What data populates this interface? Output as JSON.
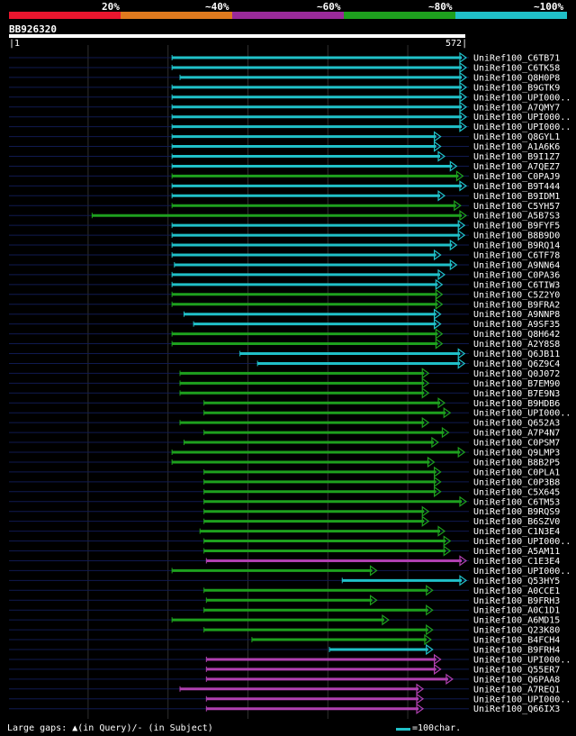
{
  "header": {
    "pct_labels": [
      "20%",
      "~40%",
      "~60%",
      "~80%",
      "~100%"
    ],
    "pct_colors": [
      "#e8162e",
      "#e07a1e",
      "#9a2a9a",
      "#1ea01e",
      "#20c0c8"
    ]
  },
  "query": {
    "name": "BB926320",
    "start": "1",
    "end": "572"
  },
  "footer": {
    "gaps_text": "Large gaps: ▲(in Query)/- (in Subject)",
    "scale_text": "=100char."
  },
  "colors": {
    "cyan": "#20c0c8",
    "green": "#1ea01e",
    "purple": "#b040b0",
    "navy": "#101a50",
    "grid": "#303030"
  },
  "chart_data": {
    "type": "alignment",
    "query_length": 572,
    "hits": [
      {
        "name": "UniRef100_C6TB71",
        "start": 205,
        "end": 572,
        "color": "cyan"
      },
      {
        "name": "UniRef100_C6TK58",
        "start": 205,
        "end": 572,
        "color": "cyan"
      },
      {
        "name": "UniRef100_Q8H0P8",
        "start": 215,
        "end": 572,
        "color": "cyan"
      },
      {
        "name": "UniRef100_B9GTK9",
        "start": 205,
        "end": 572,
        "color": "cyan"
      },
      {
        "name": "UniRef100_UPI000..",
        "start": 205,
        "end": 572,
        "color": "cyan"
      },
      {
        "name": "UniRef100_A7QMY7",
        "start": 205,
        "end": 572,
        "color": "cyan"
      },
      {
        "name": "UniRef100_UPI000..",
        "start": 205,
        "end": 572,
        "color": "cyan"
      },
      {
        "name": "UniRef100_UPI000..",
        "start": 205,
        "end": 572,
        "color": "cyan"
      },
      {
        "name": "UniRef100_Q8GYL1",
        "start": 205,
        "end": 540,
        "color": "cyan"
      },
      {
        "name": "UniRef100_A1A6K6",
        "start": 205,
        "end": 540,
        "color": "cyan"
      },
      {
        "name": "UniRef100_B9I1Z7",
        "start": 205,
        "end": 545,
        "color": "cyan"
      },
      {
        "name": "UniRef100_A7QEZ7",
        "start": 205,
        "end": 560,
        "color": "cyan"
      },
      {
        "name": "UniRef100_C0PAJ9",
        "start": 205,
        "end": 568,
        "color": "green"
      },
      {
        "name": "UniRef100_B9T444",
        "start": 205,
        "end": 572,
        "color": "cyan"
      },
      {
        "name": "UniRef100_B9IDM1",
        "start": 205,
        "end": 545,
        "color": "cyan"
      },
      {
        "name": "UniRef100_C5YH57",
        "start": 205,
        "end": 565,
        "color": "green"
      },
      {
        "name": "UniRef100_A5B7S3",
        "start": 105,
        "end": 572,
        "color": "green"
      },
      {
        "name": "UniRef100_B9FYF5",
        "start": 205,
        "end": 570,
        "color": "cyan"
      },
      {
        "name": "UniRef100_B8B9D0",
        "start": 205,
        "end": 570,
        "color": "cyan"
      },
      {
        "name": "UniRef100_B9RQ14",
        "start": 205,
        "end": 560,
        "color": "cyan"
      },
      {
        "name": "UniRef100_C6TF78",
        "start": 205,
        "end": 540,
        "color": "cyan"
      },
      {
        "name": "UniRef100_A9NN64",
        "start": 208,
        "end": 560,
        "color": "cyan"
      },
      {
        "name": "UniRef100_C0PA36",
        "start": 205,
        "end": 545,
        "color": "cyan"
      },
      {
        "name": "UniRef100_C6TIW3",
        "start": 205,
        "end": 542,
        "color": "cyan"
      },
      {
        "name": "UniRef100_C5Z2Y0",
        "start": 205,
        "end": 542,
        "color": "green"
      },
      {
        "name": "UniRef100_B9FRA2",
        "start": 205,
        "end": 542,
        "color": "green"
      },
      {
        "name": "UniRef100_A9NNP8",
        "start": 220,
        "end": 540,
        "color": "cyan"
      },
      {
        "name": "UniRef100_A9SF35",
        "start": 232,
        "end": 540,
        "color": "cyan"
      },
      {
        "name": "UniRef100_Q8H642",
        "start": 205,
        "end": 542,
        "color": "green"
      },
      {
        "name": "UniRef100_A2Y8S8",
        "start": 205,
        "end": 542,
        "color": "green"
      },
      {
        "name": "UniRef100_Q6JB11",
        "start": 290,
        "end": 570,
        "color": "cyan"
      },
      {
        "name": "UniRef100_Q6Z9C4",
        "start": 312,
        "end": 570,
        "color": "cyan"
      },
      {
        "name": "UniRef100_Q0J072",
        "start": 215,
        "end": 525,
        "color": "green"
      },
      {
        "name": "UniRef100_B7EM90",
        "start": 215,
        "end": 525,
        "color": "green"
      },
      {
        "name": "UniRef100_B7E9N3",
        "start": 215,
        "end": 525,
        "color": "green"
      },
      {
        "name": "UniRef100_B9HDB6",
        "start": 245,
        "end": 545,
        "color": "green"
      },
      {
        "name": "UniRef100_UPI000..",
        "start": 245,
        "end": 552,
        "color": "green"
      },
      {
        "name": "UniRef100_Q652A3",
        "start": 215,
        "end": 525,
        "color": "green"
      },
      {
        "name": "UniRef100_A7P4N7",
        "start": 245,
        "end": 550,
        "color": "green"
      },
      {
        "name": "UniRef100_C0PSM7",
        "start": 220,
        "end": 537,
        "color": "green"
      },
      {
        "name": "UniRef100_Q9LMP3",
        "start": 205,
        "end": 570,
        "color": "green"
      },
      {
        "name": "UniRef100_B8B2P5",
        "start": 205,
        "end": 532,
        "color": "green"
      },
      {
        "name": "UniRef100_C0PLA1",
        "start": 245,
        "end": 540,
        "color": "green"
      },
      {
        "name": "UniRef100_C0P3B8",
        "start": 245,
        "end": 540,
        "color": "green"
      },
      {
        "name": "UniRef100_C5X645",
        "start": 245,
        "end": 540,
        "color": "green"
      },
      {
        "name": "UniRef100_C6TM53",
        "start": 245,
        "end": 572,
        "color": "green"
      },
      {
        "name": "UniRef100_B9RQS9",
        "start": 245,
        "end": 525,
        "color": "green"
      },
      {
        "name": "UniRef100_B6SZV0",
        "start": 245,
        "end": 525,
        "color": "green"
      },
      {
        "name": "UniRef100_C1N3E4",
        "start": 240,
        "end": 545,
        "color": "green"
      },
      {
        "name": "UniRef100_UPI000..",
        "start": 245,
        "end": 552,
        "color": "green"
      },
      {
        "name": "UniRef100_A5AM11",
        "start": 245,
        "end": 552,
        "color": "green"
      },
      {
        "name": "UniRef100_C1E3E4",
        "start": 248,
        "end": 572,
        "color": "purple"
      },
      {
        "name": "UniRef100_UPI000..",
        "start": 205,
        "end": 460,
        "color": "green"
      },
      {
        "name": "UniRef100_Q53HY5",
        "start": 418,
        "end": 572,
        "color": "cyan"
      },
      {
        "name": "UniRef100_A0CCE1",
        "start": 245,
        "end": 530,
        "color": "green"
      },
      {
        "name": "UniRef100_B9FRH3",
        "start": 248,
        "end": 460,
        "color": "green"
      },
      {
        "name": "UniRef100_A0C1D1",
        "start": 245,
        "end": 530,
        "color": "green"
      },
      {
        "name": "UniRef100_A6MD15",
        "start": 205,
        "end": 475,
        "color": "green"
      },
      {
        "name": "UniRef100_Q23K80",
        "start": 245,
        "end": 530,
        "color": "green"
      },
      {
        "name": "UniRef100_B4FCH4",
        "start": 305,
        "end": 528,
        "color": "green"
      },
      {
        "name": "UniRef100_B9FRH4",
        "start": 402,
        "end": 530,
        "color": "cyan"
      },
      {
        "name": "UniRef100_UPI000..",
        "start": 248,
        "end": 540,
        "color": "purple"
      },
      {
        "name": "UniRef100_Q55ER7",
        "start": 248,
        "end": 540,
        "color": "purple"
      },
      {
        "name": "UniRef100_Q6PAA8",
        "start": 248,
        "end": 555,
        "color": "purple"
      },
      {
        "name": "UniRef100_A7REQ1",
        "start": 215,
        "end": 518,
        "color": "purple"
      },
      {
        "name": "UniRef100_UPI000..",
        "start": 248,
        "end": 518,
        "color": "purple"
      },
      {
        "name": "UniRef100_Q66IX3",
        "start": 248,
        "end": 518,
        "color": "purple"
      }
    ]
  }
}
